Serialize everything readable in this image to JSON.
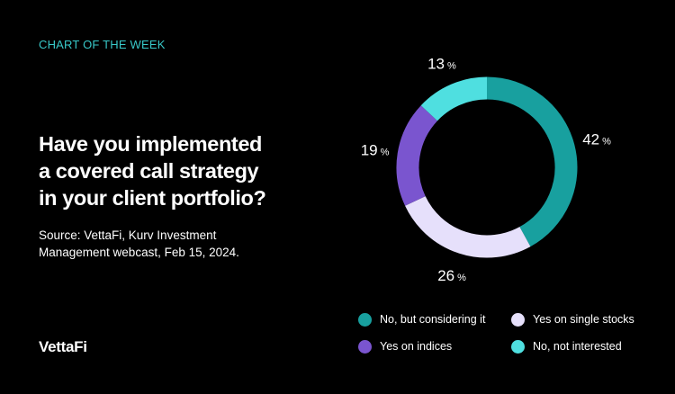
{
  "header": {
    "eyebrow": "CHART OF THE WEEK"
  },
  "question": {
    "line1": "Have you implemented",
    "line2": "a covered call strategy",
    "line3": "in your client portfolio?"
  },
  "source": {
    "line1": "Source: VettaFi, Kurv Investment",
    "line2": "Management webcast, Feb 15, 2024."
  },
  "brand": {
    "logo_text": "VettaFi"
  },
  "colors": {
    "background": "#000000",
    "eyebrow": "#38c8c8",
    "no_considering": "#18a09f",
    "yes_single": "#e6e0fb",
    "yes_indices": "#7a55cf",
    "no_not_interested": "#4fdfe0"
  },
  "chart_data": {
    "type": "pie",
    "variant": "donut",
    "title": "Have you implemented a covered call strategy in your client portfolio?",
    "unit": "%",
    "slices": [
      {
        "label": "No, but considering it",
        "value": 42,
        "color": "#18a09f"
      },
      {
        "label": "Yes on single stocks",
        "value": 26,
        "color": "#e6e0fb"
      },
      {
        "label": "Yes on indices",
        "value": 19,
        "color": "#7a55cf"
      },
      {
        "label": "No, not interested",
        "value": 13,
        "color": "#4fdfe0"
      }
    ],
    "start": "top",
    "direction": "clockwise",
    "legend_position": "bottom-right"
  }
}
